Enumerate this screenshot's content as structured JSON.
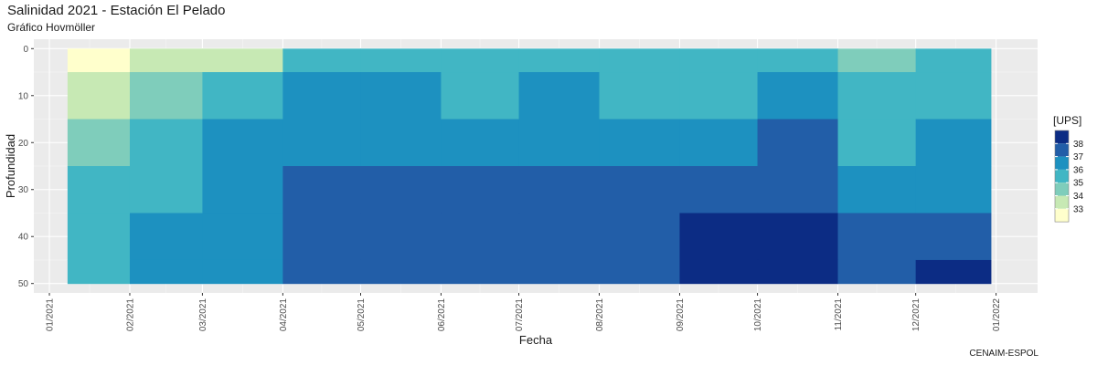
{
  "chart_data": {
    "type": "heatmap",
    "subtype": "filled-contour (Hovmöller)",
    "title": "Salinidad 2021 - Estación El Pelado",
    "subtitle": "Gráfico Hovmöller",
    "caption": "CENAIM-ESPOL",
    "xlabel": "Fecha",
    "ylabel": "Profundidad",
    "x_tick_labels": [
      "01/2021",
      "02/2021",
      "03/2021",
      "04/2021",
      "05/2021",
      "06/2021",
      "07/2021",
      "08/2021",
      "09/2021",
      "10/2021",
      "11/2021",
      "12/2021",
      "01/2022"
    ],
    "x_range": [
      "2020-12-26",
      "2022-01-17"
    ],
    "data_x_range": [
      "2021-01-08",
      "2021-12-30"
    ],
    "y_tick_labels": [
      "0",
      "10",
      "20",
      "30",
      "40",
      "50"
    ],
    "y_range": [
      -2,
      52
    ],
    "y_reversed": true,
    "grid": true,
    "legend": {
      "title": "[UPS]",
      "placement": "right",
      "labels": [
        "38",
        "37",
        "36",
        "35",
        "34",
        "33"
      ],
      "colors": [
        "#0c2c84",
        "#225ea8",
        "#1d91c0",
        "#41b6c4",
        "#7fcdbb",
        "#c7e9b4",
        "#ffffcc"
      ]
    },
    "levels": [
      33,
      34,
      35,
      36,
      37,
      38
    ],
    "months": [
      "2021-01",
      "2021-02",
      "2021-03",
      "2021-04",
      "2021-05",
      "2021-06",
      "2021-07",
      "2021-08",
      "2021-09",
      "2021-10",
      "2021-11",
      "2021-12"
    ],
    "depths": [
      0,
      10,
      20,
      30,
      40,
      50
    ],
    "values": [
      [
        32.6,
        33.1,
        33.6,
        35.3,
        35.8,
        35.3,
        35.6,
        35.4,
        35.2,
        35.8,
        34.8,
        35.2
      ],
      [
        33.8,
        34.2,
        35.8,
        36.3,
        36.1,
        35.9,
        36.0,
        35.8,
        35.6,
        36.1,
        35.1,
        35.5
      ],
      [
        34.4,
        35.2,
        36.3,
        36.5,
        36.9,
        36.6,
        36.4,
        36.6,
        36.2,
        37.1,
        35.8,
        36.1
      ],
      [
        35.3,
        35.9,
        36.7,
        37.2,
        37.4,
        37.3,
        37.2,
        37.1,
        37.4,
        37.9,
        36.3,
        36.8
      ],
      [
        35.6,
        36.0,
        36.8,
        37.5,
        37.7,
        37.5,
        37.4,
        37.3,
        38.0,
        38.1,
        37.1,
        37.5
      ],
      [
        35.7,
        36.0,
        36.7,
        37.5,
        37.8,
        37.6,
        37.5,
        37.4,
        38.1,
        38.1,
        37.5,
        38.0
      ]
    ]
  }
}
